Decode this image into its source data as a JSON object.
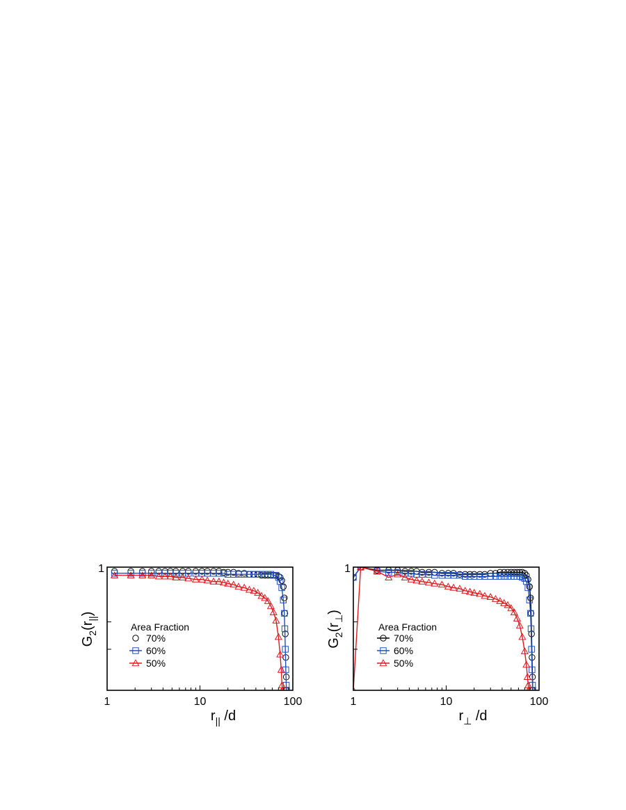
{
  "chart_data": [
    {
      "type": "line",
      "title": "",
      "x_scale": "log",
      "xlim": [
        1,
        100
      ],
      "ylim": [
        0.88,
        1.0
      ],
      "x_ticks": [
        1,
        10,
        100
      ],
      "x_tick_labels": [
        "1",
        "10",
        "100"
      ],
      "y_tick_labels": [
        "1"
      ],
      "xlabel": {
        "main": "r",
        "sub": "||",
        "suffix": " /d"
      },
      "ylabel": {
        "main": "G",
        "sub": "2",
        "mid": "(r",
        "sub2": "||",
        "end": ")"
      },
      "legend_title": "Area Fraction",
      "legend_position": "lower-left",
      "grid": false,
      "series": [
        {
          "name": "70%",
          "color": "#000000",
          "marker": "circle",
          "line": false,
          "points": [
            [
              1.2,
              0.996
            ],
            [
              1.8,
              0.996
            ],
            [
              2.4,
              0.996
            ],
            [
              3.0,
              0.996
            ],
            [
              3.6,
              0.996
            ],
            [
              4.2,
              0.996
            ],
            [
              4.8,
              0.996
            ],
            [
              5.5,
              0.996
            ],
            [
              6.5,
              0.996
            ],
            [
              7.5,
              0.996
            ],
            [
              9,
              0.996
            ],
            [
              10.5,
              0.996
            ],
            [
              12,
              0.996
            ],
            [
              14,
              0.996
            ],
            [
              16,
              0.996
            ],
            [
              18,
              0.995
            ],
            [
              20,
              0.995
            ],
            [
              23,
              0.995
            ],
            [
              26,
              0.994
            ],
            [
              30,
              0.994
            ],
            [
              34,
              0.993
            ],
            [
              38,
              0.993
            ],
            [
              42,
              0.993
            ],
            [
              46,
              0.992
            ],
            [
              50,
              0.992
            ],
            [
              54,
              0.992
            ],
            [
              58,
              0.992
            ],
            [
              62,
              0.992
            ],
            [
              66,
              0.992
            ],
            [
              70,
              0.991
            ],
            [
              73,
              0.99
            ],
            [
              76,
              0.987
            ],
            [
              79,
              0.981
            ],
            [
              81,
              0.97
            ],
            [
              82,
              0.955
            ],
            [
              83,
              0.935
            ],
            [
              84,
              0.912
            ],
            [
              85,
              0.893
            ],
            [
              85.5,
              0.88
            ]
          ]
        },
        {
          "name": "60%",
          "color": "#1f4fbf",
          "marker": "square",
          "line": true,
          "points": [
            [
              1.2,
              0.994
            ],
            [
              1.8,
              0.994
            ],
            [
              2.4,
              0.994
            ],
            [
              3.0,
              0.994
            ],
            [
              3.6,
              0.994
            ],
            [
              4.2,
              0.994
            ],
            [
              4.8,
              0.994
            ],
            [
              5.5,
              0.994
            ],
            [
              6.5,
              0.994
            ],
            [
              7.5,
              0.994
            ],
            [
              9,
              0.994
            ],
            [
              10.5,
              0.994
            ],
            [
              12,
              0.994
            ],
            [
              14,
              0.994
            ],
            [
              16,
              0.994
            ],
            [
              18,
              0.994
            ],
            [
              20,
              0.993
            ],
            [
              23,
              0.993
            ],
            [
              26,
              0.993
            ],
            [
              30,
              0.993
            ],
            [
              34,
              0.993
            ],
            [
              38,
              0.993
            ],
            [
              42,
              0.993
            ],
            [
              46,
              0.993
            ],
            [
              50,
              0.993
            ],
            [
              54,
              0.993
            ],
            [
              58,
              0.993
            ],
            [
              62,
              0.992
            ],
            [
              66,
              0.992
            ],
            [
              70,
              0.99
            ],
            [
              73,
              0.986
            ],
            [
              76,
              0.98
            ],
            [
              79,
              0.968
            ],
            [
              81,
              0.955
            ],
            [
              82,
              0.94
            ],
            [
              83,
              0.92
            ],
            [
              84,
              0.9
            ],
            [
              85,
              0.885
            ],
            [
              85.5,
              0.88
            ]
          ]
        },
        {
          "name": "50%",
          "color": "#e0191e",
          "marker": "triangle",
          "line": true,
          "points": [
            [
              1.2,
              0.992
            ],
            [
              1.8,
              0.992
            ],
            [
              2.4,
              0.992
            ],
            [
              3.0,
              0.992
            ],
            [
              3.6,
              0.991
            ],
            [
              4.2,
              0.991
            ],
            [
              4.8,
              0.991
            ],
            [
              5.5,
              0.99
            ],
            [
              6.5,
              0.99
            ],
            [
              7.5,
              0.989
            ],
            [
              9,
              0.988
            ],
            [
              10.5,
              0.988
            ],
            [
              12,
              0.987
            ],
            [
              14,
              0.986
            ],
            [
              16,
              0.986
            ],
            [
              18,
              0.985
            ],
            [
              20,
              0.984
            ],
            [
              23,
              0.983
            ],
            [
              26,
              0.981
            ],
            [
              30,
              0.98
            ],
            [
              34,
              0.978
            ],
            [
              38,
              0.977
            ],
            [
              42,
              0.975
            ],
            [
              46,
              0.972
            ],
            [
              50,
              0.97
            ],
            [
              54,
              0.967
            ],
            [
              58,
              0.962
            ],
            [
              62,
              0.956
            ],
            [
              66,
              0.948
            ],
            [
              70,
              0.932
            ],
            [
              73,
              0.915
            ],
            [
              75,
              0.9
            ],
            [
              76.5,
              0.885
            ],
            [
              77,
              0.88
            ]
          ]
        }
      ]
    },
    {
      "type": "line",
      "title": "",
      "x_scale": "log",
      "xlim": [
        1,
        100
      ],
      "ylim": [
        0.88,
        1.0
      ],
      "x_ticks": [
        1,
        10,
        100
      ],
      "x_tick_labels": [
        "1",
        "10",
        "100"
      ],
      "y_tick_labels": [
        "1"
      ],
      "xlabel": {
        "main": "r",
        "sub": "⊥",
        "suffix": " /d"
      },
      "ylabel": {
        "main": "G",
        "sub": "2",
        "mid": "(r",
        "sub2": "⊥",
        "end": ")"
      },
      "legend_title": "Area Fraction",
      "legend_position": "lower-left",
      "grid": false,
      "series": [
        {
          "name": "70%",
          "color": "#000000",
          "marker": "circle",
          "line": true,
          "points": [
            [
              1.0,
              0.99
            ],
            [
              1.2,
              1.0
            ],
            [
              1.8,
              0.997
            ],
            [
              2.4,
              0.997
            ],
            [
              3.0,
              0.997
            ],
            [
              3.6,
              0.996
            ],
            [
              4.2,
              0.996
            ],
            [
              4.8,
              0.996
            ],
            [
              5.5,
              0.995
            ],
            [
              6.5,
              0.995
            ],
            [
              7.5,
              0.995
            ],
            [
              9,
              0.994
            ],
            [
              10.5,
              0.994
            ],
            [
              12,
              0.994
            ],
            [
              14,
              0.993
            ],
            [
              16,
              0.993
            ],
            [
              18,
              0.993
            ],
            [
              20,
              0.993
            ],
            [
              23,
              0.993
            ],
            [
              26,
              0.993
            ],
            [
              30,
              0.994
            ],
            [
              34,
              0.994
            ],
            [
              38,
              0.995
            ],
            [
              42,
              0.995
            ],
            [
              46,
              0.995
            ],
            [
              50,
              0.995
            ],
            [
              54,
              0.995
            ],
            [
              58,
              0.995
            ],
            [
              62,
              0.995
            ],
            [
              66,
              0.995
            ],
            [
              70,
              0.994
            ],
            [
              73,
              0.992
            ],
            [
              76,
              0.988
            ],
            [
              79,
              0.981
            ],
            [
              81,
              0.97
            ],
            [
              82,
              0.955
            ],
            [
              83,
              0.935
            ],
            [
              84,
              0.912
            ],
            [
              85,
              0.893
            ],
            [
              85.5,
              0.88
            ]
          ]
        },
        {
          "name": "60%",
          "color": "#1f4fbf",
          "marker": "square",
          "line": true,
          "points": [
            [
              1.0,
              0.99
            ],
            [
              1.2,
              1.0
            ],
            [
              1.8,
              0.996
            ],
            [
              2.4,
              0.995
            ],
            [
              3.0,
              0.995
            ],
            [
              3.6,
              0.994
            ],
            [
              4.2,
              0.994
            ],
            [
              4.8,
              0.993
            ],
            [
              5.5,
              0.993
            ],
            [
              6.5,
              0.993
            ],
            [
              7.5,
              0.992
            ],
            [
              9,
              0.992
            ],
            [
              10.5,
              0.992
            ],
            [
              12,
              0.992
            ],
            [
              14,
              0.992
            ],
            [
              16,
              0.991
            ],
            [
              18,
              0.991
            ],
            [
              20,
              0.991
            ],
            [
              23,
              0.991
            ],
            [
              26,
              0.991
            ],
            [
              30,
              0.991
            ],
            [
              34,
              0.991
            ],
            [
              38,
              0.991
            ],
            [
              42,
              0.991
            ],
            [
              46,
              0.991
            ],
            [
              50,
              0.991
            ],
            [
              54,
              0.991
            ],
            [
              58,
              0.991
            ],
            [
              62,
              0.991
            ],
            [
              66,
              0.99
            ],
            [
              70,
              0.989
            ],
            [
              73,
              0.986
            ],
            [
              76,
              0.98
            ],
            [
              79,
              0.968
            ],
            [
              81,
              0.955
            ],
            [
              82,
              0.94
            ],
            [
              83,
              0.92
            ],
            [
              84,
              0.9
            ],
            [
              85,
              0.885
            ],
            [
              85.5,
              0.88
            ]
          ]
        },
        {
          "name": "50%",
          "color": "#e0191e",
          "marker": "triangle",
          "line": true,
          "points": [
            [
              1.0,
              0.88
            ],
            [
              1.2,
              1.0
            ],
            [
              1.8,
              0.996
            ],
            [
              2.4,
              0.99
            ],
            [
              3.0,
              0.993
            ],
            [
              3.6,
              0.99
            ],
            [
              4.2,
              0.988
            ],
            [
              4.8,
              0.987
            ],
            [
              5.5,
              0.986
            ],
            [
              6.5,
              0.985
            ],
            [
              7.5,
              0.984
            ],
            [
              9,
              0.983
            ],
            [
              10.5,
              0.981
            ],
            [
              12,
              0.98
            ],
            [
              14,
              0.979
            ],
            [
              16,
              0.977
            ],
            [
              18,
              0.976
            ],
            [
              20,
              0.975
            ],
            [
              23,
              0.974
            ],
            [
              26,
              0.972
            ],
            [
              30,
              0.971
            ],
            [
              34,
              0.969
            ],
            [
              38,
              0.967
            ],
            [
              42,
              0.965
            ],
            [
              46,
              0.963
            ],
            [
              50,
              0.96
            ],
            [
              54,
              0.956
            ],
            [
              58,
              0.95
            ],
            [
              62,
              0.943
            ],
            [
              66,
              0.932
            ],
            [
              70,
              0.918
            ],
            [
              73,
              0.905
            ],
            [
              75,
              0.893
            ],
            [
              76.5,
              0.885
            ],
            [
              77,
              0.88
            ]
          ]
        }
      ]
    }
  ]
}
